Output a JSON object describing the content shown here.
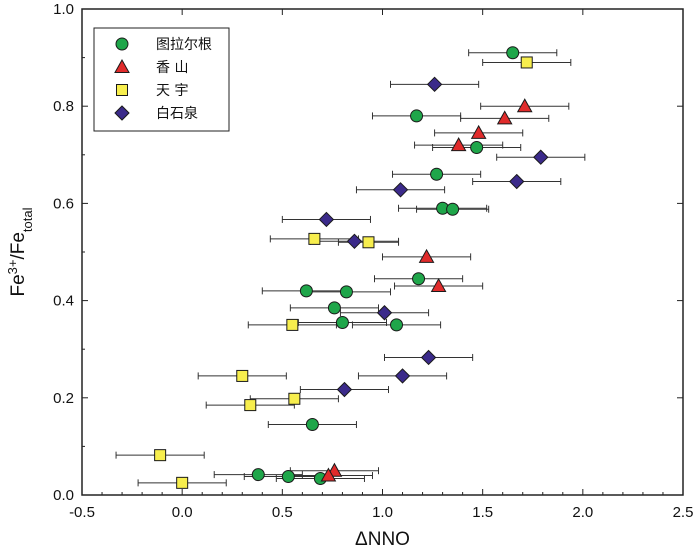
{
  "chart_data": {
    "type": "scatter",
    "xlabel": "ΔNNO",
    "ylabel": {
      "base": "Fe",
      "sup": "3+",
      "slash": "/Fe",
      "sub": "total"
    },
    "xlim": [
      -0.5,
      2.5
    ],
    "ylim": [
      0.0,
      1.0
    ],
    "xticks": [
      -0.5,
      0.0,
      0.5,
      1.0,
      1.5,
      2.0,
      2.5
    ],
    "xtick_labels": [
      "-0.5",
      "0.0",
      "0.5",
      "1.0",
      "1.5",
      "2.0",
      "2.5"
    ],
    "yticks": [
      0.0,
      0.2,
      0.4,
      0.6,
      0.8,
      1.0
    ],
    "ytick_labels": [
      "0.0",
      "0.2",
      "0.4",
      "0.6",
      "0.8",
      "1.0"
    ],
    "grid": false,
    "legend_position": "top-left",
    "series": [
      {
        "name": "图拉尔根",
        "marker": "circle",
        "color": "#1fa64a",
        "points": [
          {
            "x": 1.65,
            "y": 0.91,
            "xerr": 0.22
          },
          {
            "x": 1.17,
            "y": 0.78,
            "xerr": 0.22
          },
          {
            "x": 1.47,
            "y": 0.715,
            "xerr": 0.22
          },
          {
            "x": 1.27,
            "y": 0.66,
            "xerr": 0.22
          },
          {
            "x": 1.3,
            "y": 0.59,
            "xerr": 0.22
          },
          {
            "x": 1.35,
            "y": 0.588,
            "xerr": 0.18
          },
          {
            "x": 1.18,
            "y": 0.445,
            "xerr": 0.22
          },
          {
            "x": 0.62,
            "y": 0.42,
            "xerr": 0.22
          },
          {
            "x": 0.82,
            "y": 0.418,
            "xerr": 0.22
          },
          {
            "x": 0.76,
            "y": 0.385,
            "xerr": 0.22
          },
          {
            "x": 0.8,
            "y": 0.355,
            "xerr": 0.22
          },
          {
            "x": 1.07,
            "y": 0.35,
            "xerr": 0.22
          },
          {
            "x": 0.65,
            "y": 0.145,
            "xerr": 0.22
          },
          {
            "x": 0.38,
            "y": 0.042,
            "xerr": 0.22
          },
          {
            "x": 0.53,
            "y": 0.038,
            "xerr": 0.22
          },
          {
            "x": 0.69,
            "y": 0.034,
            "xerr": 0.22
          }
        ]
      },
      {
        "name": "香 山",
        "marker": "triangle",
        "color": "#e02b2b",
        "points": [
          {
            "x": 1.71,
            "y": 0.8,
            "xerr": 0.22
          },
          {
            "x": 1.61,
            "y": 0.775,
            "xerr": 0.22
          },
          {
            "x": 1.48,
            "y": 0.745,
            "xerr": 0.22
          },
          {
            "x": 1.38,
            "y": 0.72,
            "xerr": 0.22
          },
          {
            "x": 1.22,
            "y": 0.49,
            "xerr": 0.22
          },
          {
            "x": 1.28,
            "y": 0.43,
            "xerr": 0.22
          },
          {
            "x": 0.76,
            "y": 0.05,
            "xerr": 0.22
          },
          {
            "x": 0.73,
            "y": 0.04,
            "xerr": 0.22
          }
        ]
      },
      {
        "name": "天 宇",
        "marker": "square",
        "color": "#f7ee4d",
        "points": [
          {
            "x": 1.72,
            "y": 0.89,
            "xerr": 0.22
          },
          {
            "x": 0.66,
            "y": 0.527,
            "xerr": 0.22
          },
          {
            "x": 0.93,
            "y": 0.52,
            "xerr": 0.15
          },
          {
            "x": 0.55,
            "y": 0.35,
            "xerr": 0.22
          },
          {
            "x": 0.3,
            "y": 0.245,
            "xerr": 0.22
          },
          {
            "x": 0.56,
            "y": 0.198,
            "xerr": 0.22
          },
          {
            "x": 0.34,
            "y": 0.185,
            "xerr": 0.22
          },
          {
            "x": -0.11,
            "y": 0.082,
            "xerr": 0.22
          },
          {
            "x": 0.0,
            "y": 0.025,
            "xerr": 0.22
          }
        ]
      },
      {
        "name": "白石泉",
        "marker": "diamond",
        "color": "#3b2a8a",
        "points": [
          {
            "x": 1.26,
            "y": 0.845,
            "xerr": 0.22
          },
          {
            "x": 1.79,
            "y": 0.695,
            "xerr": 0.22
          },
          {
            "x": 1.67,
            "y": 0.645,
            "xerr": 0.22
          },
          {
            "x": 1.09,
            "y": 0.628,
            "xerr": 0.22
          },
          {
            "x": 0.72,
            "y": 0.567,
            "xerr": 0.22
          },
          {
            "x": 0.86,
            "y": 0.522,
            "xerr": 0.22
          },
          {
            "x": 1.01,
            "y": 0.375,
            "xerr": 0.22
          },
          {
            "x": 1.23,
            "y": 0.283,
            "xerr": 0.22
          },
          {
            "x": 1.1,
            "y": 0.245,
            "xerr": 0.22
          },
          {
            "x": 0.81,
            "y": 0.217,
            "xerr": 0.22
          }
        ]
      }
    ]
  }
}
